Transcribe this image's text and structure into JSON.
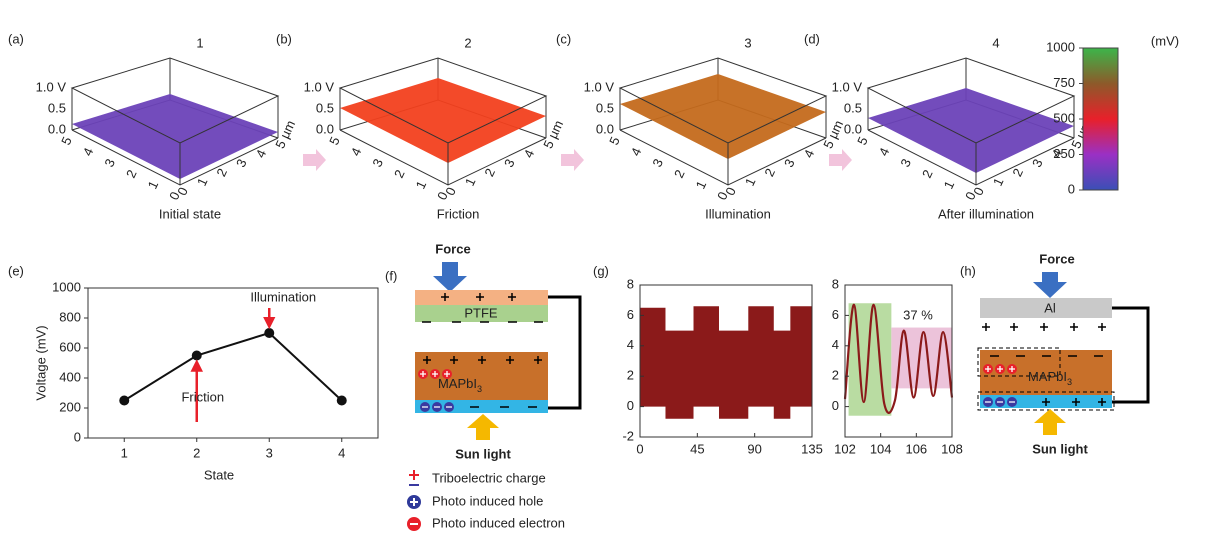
{
  "panels": [
    {
      "label": "(a)",
      "title": "1",
      "caption": "Initial state",
      "color": "#6b42b8"
    },
    {
      "label": "(b)",
      "title": "2",
      "caption": "Friction",
      "color": "#f2401e"
    },
    {
      "label": "(c)",
      "title": "3",
      "caption": "Illumination",
      "color": "#c46a1c"
    },
    {
      "label": "(d)",
      "title": "4",
      "caption": "After illumination",
      "color": "#6b42b8"
    }
  ],
  "surface_axis": {
    "z_ticks": [
      "0.0",
      "0.5",
      "1.0 V"
    ],
    "depth_ticks": [
      "5",
      "4",
      "3",
      "2",
      "1",
      "0"
    ],
    "width_ticks": [
      "0",
      "1",
      "2",
      "3",
      "4",
      "5 µm"
    ]
  },
  "colorbar": {
    "unit": "(mV)",
    "ylim": [
      0,
      1000
    ],
    "yticks": [
      0,
      250,
      500,
      750,
      1000
    ],
    "colors": [
      "#3b4fb6",
      "#9a30c4",
      "#e8202a",
      "#8d5a2a",
      "#3cb54a"
    ]
  },
  "chart_e": {
    "label": "(e)",
    "type": "line",
    "categories": [
      "1",
      "2",
      "3",
      "4"
    ],
    "values": [
      250,
      550,
      700,
      250
    ],
    "ylim": [
      0,
      1000
    ],
    "yticks": [
      0,
      200,
      400,
      600,
      800,
      1000
    ],
    "xlabel": "State",
    "ylabel": "Voltage (mV)",
    "annotations": [
      "Friction",
      "Illumination"
    ]
  },
  "panel_f": {
    "label": "(f)",
    "force": "Force",
    "top_layer": "PTFE",
    "active_layer": {
      "base": "MAPbI",
      "sub": "3"
    },
    "light": "Sun light"
  },
  "legend": [
    "Triboelectric charge",
    "Photo induced hole",
    "Photo induced electron"
  ],
  "chart_g": {
    "label": "(g)",
    "left": {
      "type": "band",
      "color": "#8b1a1a",
      "x": [
        0,
        20,
        20,
        42,
        42,
        62,
        62,
        85,
        85,
        105,
        105,
        118,
        118,
        135
      ],
      "upper": [
        6.5,
        6.5,
        5,
        5,
        6.6,
        6.6,
        5,
        5,
        6.6,
        6.6,
        5,
        5,
        6.6,
        6.6
      ],
      "lower": [
        0,
        0,
        -0.8,
        -0.8,
        0,
        0,
        -0.8,
        -0.8,
        0,
        0,
        -0.8,
        -0.8,
        0,
        0
      ],
      "xlim": [
        0,
        135
      ],
      "xticks": [
        0,
        45,
        90,
        135
      ],
      "ylim": [
        -2,
        8
      ],
      "yticks": [
        -2,
        0,
        2,
        4,
        6,
        8
      ]
    },
    "right": {
      "type": "line",
      "color": "#8b1a1a",
      "x": [
        102,
        102.5,
        103.05,
        103.6,
        104.2,
        104.8,
        105.3,
        105.85,
        106.4,
        106.95,
        107.5,
        108
      ],
      "values": [
        0.5,
        6.7,
        0.3,
        6.7,
        0.2,
        0.4,
        5.0,
        0.6,
        4.9,
        0.7,
        4.9,
        0.6
      ],
      "xlim": [
        102,
        108
      ],
      "xticks": [
        102,
        104,
        106,
        108
      ],
      "ylim": [
        -2,
        8
      ],
      "yticks": [
        0,
        2,
        4,
        6,
        8
      ],
      "regions": [
        {
          "x": [
            102.2,
            104.6
          ],
          "y": [
            -0.6,
            6.8
          ],
          "color": "#b9dca2"
        },
        {
          "x": [
            104.6,
            108
          ],
          "y": [
            1.2,
            5.2
          ],
          "color": "#ecc3da"
        }
      ],
      "annotation": "37 %"
    }
  },
  "panel_h": {
    "label": "(h)",
    "force": "Force",
    "top_layer": "Al",
    "active_layer": {
      "base": "MAPbI",
      "sub": "3"
    },
    "light": "Sun light"
  }
}
